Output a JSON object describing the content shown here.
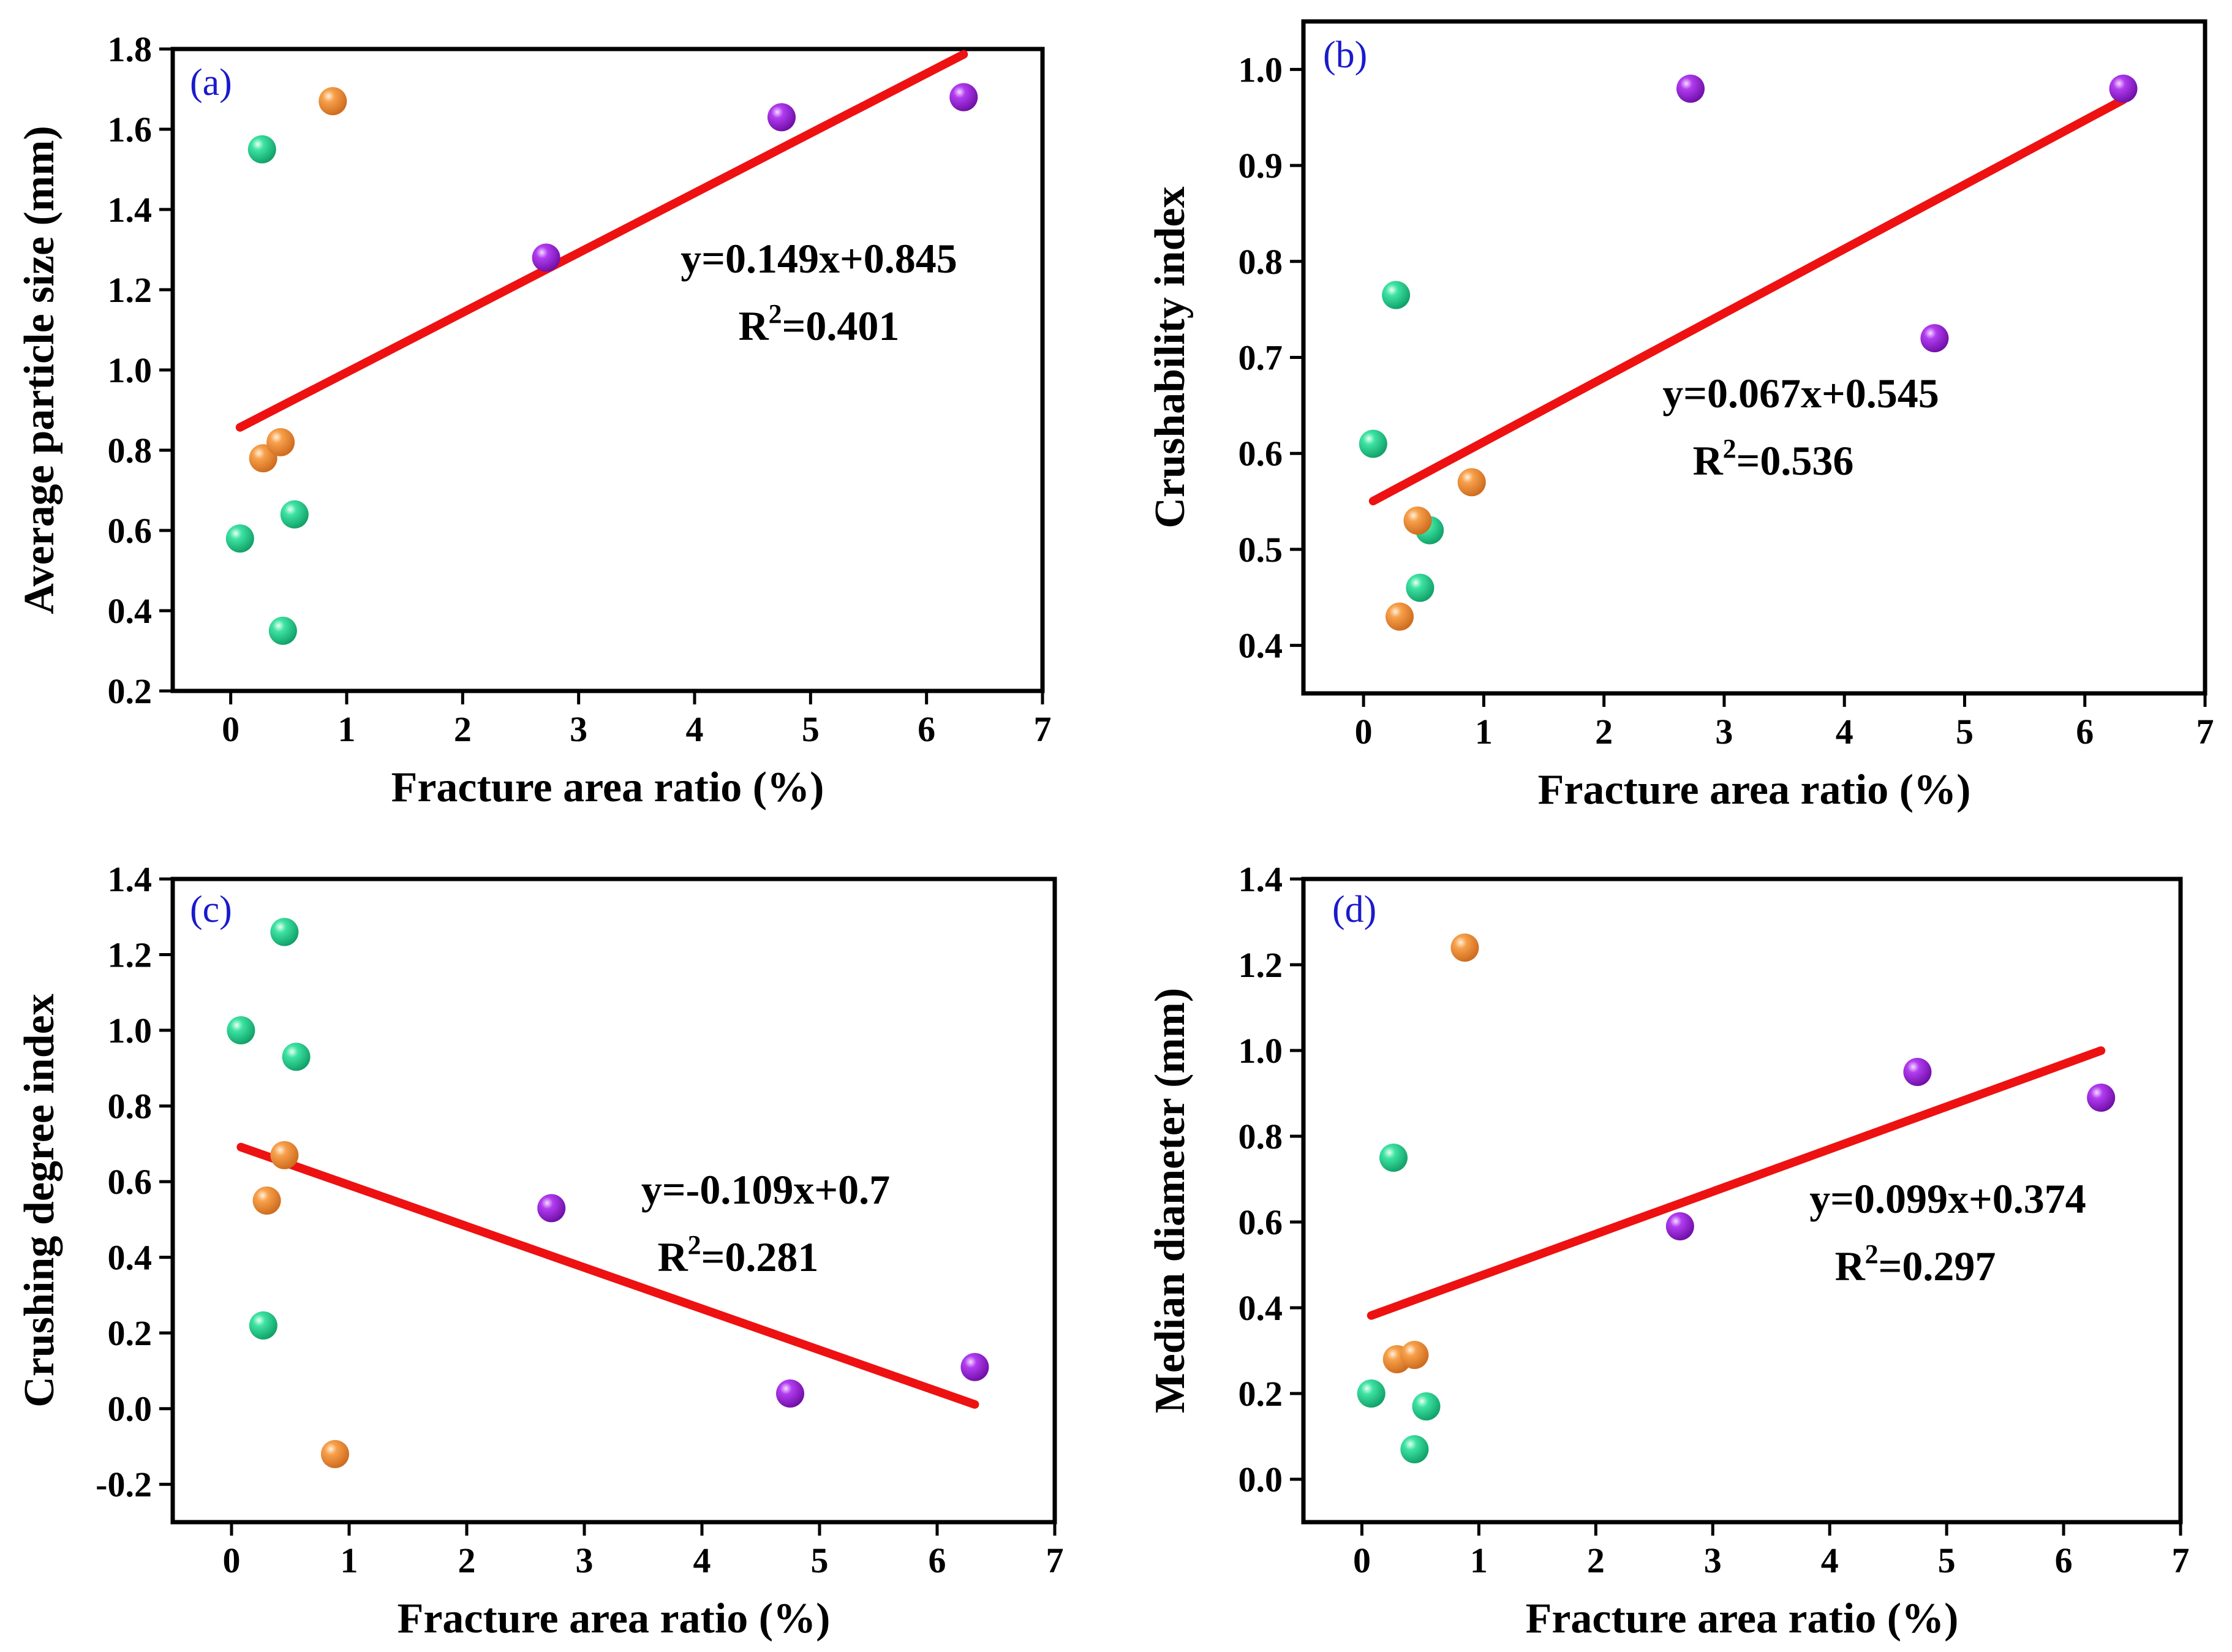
{
  "figure": {
    "background": "#ffffff"
  },
  "colors": {
    "green": "#19d08a",
    "orange": "#f28c28",
    "purple": "#9a16d8",
    "fit": "#ee1111",
    "label": "#1a1acc"
  },
  "chart_data": [
    {
      "id": "a",
      "type": "scatter",
      "panel_label": "(a)",
      "xlabel": "Fracture area ratio (%)",
      "ylabel": "Average particle size (mm)",
      "xlim": [
        -0.5,
        7
      ],
      "ylim": [
        0.2,
        1.8
      ],
      "xticks": [
        0,
        1,
        2,
        3,
        4,
        5,
        6,
        7
      ],
      "yticks": [
        0.2,
        0.4,
        0.6,
        0.8,
        1.0,
        1.2,
        1.4,
        1.6,
        1.8
      ],
      "xtick_labels": [
        "0",
        "1",
        "2",
        "3",
        "4",
        "5",
        "6",
        "7"
      ],
      "ytick_labels": [
        "0.2",
        "0.4",
        "0.6",
        "0.8",
        "1.0",
        "1.2",
        "1.4",
        "1.6",
        "1.8"
      ],
      "series": [
        {
          "name": "green",
          "color": "#19d08a",
          "x": [
            0.08,
            0.27,
            0.45,
            0.55
          ],
          "y": [
            0.58,
            1.55,
            0.35,
            0.64
          ]
        },
        {
          "name": "orange",
          "color": "#f28c28",
          "x": [
            0.28,
            0.43,
            0.88
          ],
          "y": [
            0.78,
            0.82,
            1.67
          ]
        },
        {
          "name": "purple",
          "color": "#9a16d8",
          "x": [
            2.72,
            4.75,
            6.32
          ],
          "y": [
            1.28,
            1.63,
            1.68
          ]
        }
      ],
      "fit": {
        "slope": 0.149,
        "intercept": 0.845,
        "x_range": [
          0.08,
          6.32
        ],
        "equation": "y=0.149x+0.845",
        "r2_prefix": "R",
        "r2_sup": "2",
        "r2_value": "=0.401"
      }
    },
    {
      "id": "b",
      "type": "scatter",
      "panel_label": "(b)",
      "xlabel": "Fracture area ratio (%)",
      "ylabel": "Crushability index",
      "xlim": [
        -0.5,
        7
      ],
      "ylim": [
        0.35,
        1.05
      ],
      "xticks": [
        0,
        1,
        2,
        3,
        4,
        5,
        6,
        7
      ],
      "yticks": [
        0.4,
        0.5,
        0.6,
        0.7,
        0.8,
        0.9,
        1.0
      ],
      "xtick_labels": [
        "0",
        "1",
        "2",
        "3",
        "4",
        "5",
        "6",
        "7"
      ],
      "ytick_labels": [
        "0.4",
        "0.5",
        "0.6",
        "0.7",
        "0.8",
        "0.9",
        "1.0"
      ],
      "series": [
        {
          "name": "green",
          "color": "#19d08a",
          "x": [
            0.08,
            0.27,
            0.47,
            0.55
          ],
          "y": [
            0.61,
            0.765,
            0.46,
            0.52
          ]
        },
        {
          "name": "orange",
          "color": "#f28c28",
          "x": [
            0.3,
            0.45,
            0.9
          ],
          "y": [
            0.43,
            0.53,
            0.57
          ]
        },
        {
          "name": "purple",
          "color": "#9a16d8",
          "x": [
            2.72,
            4.75,
            6.32
          ],
          "y": [
            0.98,
            0.72,
            0.98
          ]
        }
      ],
      "fit": {
        "slope": 0.067,
        "intercept": 0.545,
        "x_range": [
          0.08,
          6.32
        ],
        "equation": "y=0.067x+0.545",
        "r2_prefix": "R",
        "r2_sup": "2",
        "r2_value": "=0.536"
      }
    },
    {
      "id": "c",
      "type": "scatter",
      "panel_label": "(c)",
      "xlabel": "Fracture area ratio (%)",
      "ylabel": "Crushing degree index",
      "xlim": [
        -0.5,
        7
      ],
      "ylim": [
        -0.3,
        1.4
      ],
      "xticks": [
        0,
        1,
        2,
        3,
        4,
        5,
        6,
        7
      ],
      "yticks": [
        -0.2,
        0.0,
        0.2,
        0.4,
        0.6,
        0.8,
        1.0,
        1.2,
        1.4
      ],
      "xtick_labels": [
        "0",
        "1",
        "2",
        "3",
        "4",
        "5",
        "6",
        "7"
      ],
      "ytick_labels": [
        "-0.2",
        "0.0",
        "0.2",
        "0.4",
        "0.6",
        "0.8",
        "1.0",
        "1.2",
        "1.4"
      ],
      "series": [
        {
          "name": "green",
          "color": "#19d08a",
          "x": [
            0.08,
            0.27,
            0.45,
            0.55
          ],
          "y": [
            1.0,
            0.22,
            1.26,
            0.93
          ]
        },
        {
          "name": "orange",
          "color": "#f28c28",
          "x": [
            0.3,
            0.45,
            0.88
          ],
          "y": [
            0.55,
            0.67,
            -0.12
          ]
        },
        {
          "name": "purple",
          "color": "#9a16d8",
          "x": [
            2.72,
            4.75,
            6.32
          ],
          "y": [
            0.53,
            0.04,
            0.11
          ]
        }
      ],
      "fit": {
        "slope": -0.109,
        "intercept": 0.7,
        "x_range": [
          0.08,
          6.32
        ],
        "equation": "y=-0.109x+0.7",
        "r2_prefix": "R",
        "r2_sup": "2",
        "r2_value": "=0.281"
      }
    },
    {
      "id": "d",
      "type": "scatter",
      "panel_label": "(d)",
      "xlabel": "Fracture area ratio (%)",
      "ylabel": "Median diameter (mm)",
      "xlim": [
        -0.5,
        7
      ],
      "ylim": [
        -0.1,
        1.4
      ],
      "xticks": [
        0,
        1,
        2,
        3,
        4,
        5,
        6,
        7
      ],
      "yticks": [
        0.0,
        0.2,
        0.4,
        0.6,
        0.8,
        1.0,
        1.2,
        1.4
      ],
      "xtick_labels": [
        "0",
        "1",
        "2",
        "3",
        "4",
        "5",
        "6",
        "7"
      ],
      "ytick_labels": [
        "0.0",
        "0.2",
        "0.4",
        "0.6",
        "0.8",
        "1.0",
        "1.2",
        "1.4"
      ],
      "series": [
        {
          "name": "green",
          "color": "#19d08a",
          "x": [
            0.08,
            0.27,
            0.45,
            0.55
          ],
          "y": [
            0.2,
            0.75,
            0.07,
            0.17
          ]
        },
        {
          "name": "orange",
          "color": "#f28c28",
          "x": [
            0.3,
            0.45,
            0.88
          ],
          "y": [
            0.28,
            0.29,
            1.24
          ]
        },
        {
          "name": "purple",
          "color": "#9a16d8",
          "x": [
            2.72,
            4.75,
            6.32
          ],
          "y": [
            0.59,
            0.95,
            0.89
          ]
        }
      ],
      "fit": {
        "slope": 0.099,
        "intercept": 0.374,
        "x_range": [
          0.08,
          6.32
        ],
        "equation": "y=0.099x+0.374",
        "r2_prefix": "R",
        "r2_sup": "2",
        "r2_value": "=0.297"
      }
    }
  ]
}
